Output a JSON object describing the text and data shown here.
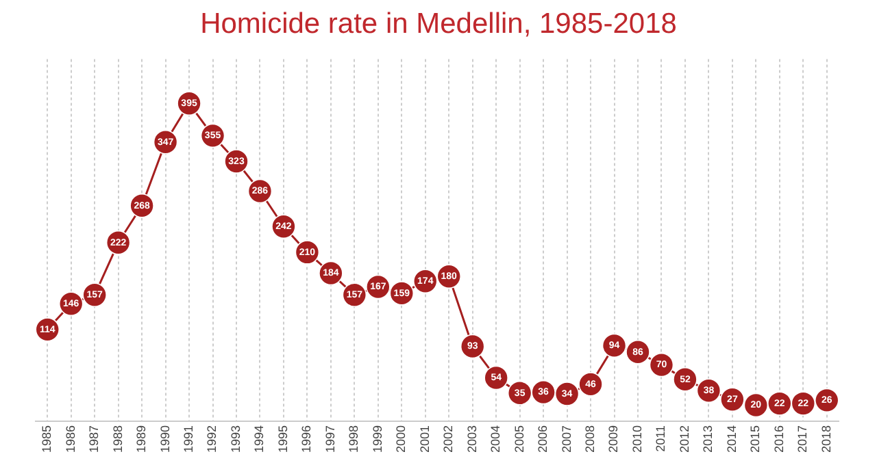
{
  "chart_data": {
    "type": "line",
    "title": "Homicide rate in Medellin, 1985-2018",
    "categories": [
      "1985",
      "1986",
      "1987",
      "1988",
      "1989",
      "1990",
      "1991",
      "1992",
      "1993",
      "1994",
      "1995",
      "1996",
      "1997",
      "1998",
      "1999",
      "2000",
      "2001",
      "2002",
      "2003",
      "2004",
      "2005",
      "2006",
      "2007",
      "2008",
      "2009",
      "2010",
      "2011",
      "2012",
      "2013",
      "2014",
      "2015",
      "2016",
      "2017",
      "2018"
    ],
    "series": [
      {
        "color": "#a51f1f",
        "values": [
          114,
          146,
          157,
          222,
          268,
          347,
          395,
          355,
          323,
          286,
          242,
          210,
          184,
          157,
          167,
          159,
          174,
          180,
          93,
          54,
          35,
          36,
          34,
          46,
          94,
          86,
          70,
          52,
          38,
          27,
          20,
          22,
          22,
          26
        ]
      }
    ],
    "data_labels": true,
    "grid": "x",
    "legend": false,
    "marker": "circle",
    "line_style": "solid",
    "tick_labels": "x"
  }
}
